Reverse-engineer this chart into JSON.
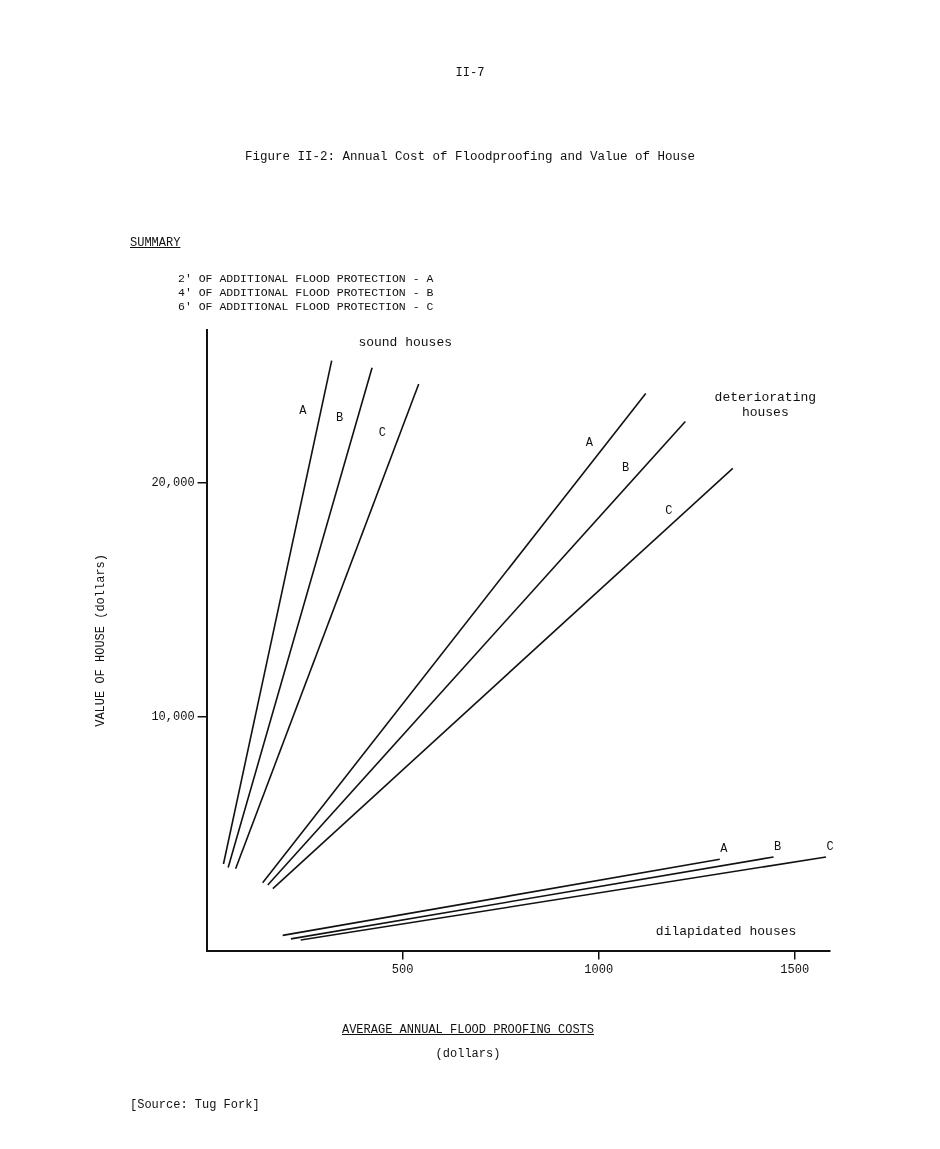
{
  "chart_data": {
    "type": "line",
    "title": "Figure II-2:  Annual Cost of Floodproofing and Value of House",
    "xlabel": "AVERAGE ANNUAL FLOOD PROOFING COSTS (dollars)",
    "ylabel": "VALUE OF HOUSE (dollars)",
    "xlim": [
      0,
      1590
    ],
    "xticks": [
      500,
      1000,
      1500
    ],
    "ylim": [
      0,
      26500
    ],
    "yticks": [
      {
        "value": 10000,
        "label": "10,000"
      },
      {
        "value": 20000,
        "label": "20,000"
      }
    ],
    "grid": false,
    "legend": false,
    "marker": "none",
    "line_style": "solid",
    "series": [
      {
        "name": "A",
        "color": "#111111",
        "x": [
          43,
          319
        ],
        "values": [
          3700,
          25200
        ]
      },
      {
        "name": "B",
        "color": "#111111",
        "x": [
          55,
          422
        ],
        "values": [
          3550,
          24900
        ]
      },
      {
        "name": "C",
        "color": "#111111",
        "x": [
          74,
          541
        ],
        "values": [
          3500,
          24200
        ]
      },
      {
        "name": "A",
        "color": "#111111",
        "x": [
          143,
          1120
        ],
        "values": [
          2900,
          23800
        ]
      },
      {
        "name": "B",
        "color": "#111111",
        "x": [
          156,
          1221
        ],
        "values": [
          2800,
          22600
        ]
      },
      {
        "name": "C",
        "color": "#111111",
        "x": [
          169,
          1342
        ],
        "values": [
          2650,
          20600
        ]
      },
      {
        "name": "A",
        "color": "#111111",
        "x": [
          194,
          1309
        ],
        "values": [
          650,
          3900
        ]
      },
      {
        "name": "B",
        "color": "#111111",
        "x": [
          215,
          1446
        ],
        "values": [
          500,
          4000
        ]
      },
      {
        "name": "C",
        "color": "#111111",
        "x": [
          240,
          1580
        ],
        "values": [
          450,
          4000
        ]
      }
    ],
    "annotations": [
      "II-7",
      "SUMMARY",
      "2' OF ADDITIONAL FLOOD PROTECTION - A",
      "4' OF ADDITIONAL FLOOD PROTECTION - B",
      "6' OF ADDITIONAL FLOOD PROTECTION - C",
      "sound houses",
      "deteriorating houses",
      "dilapidated houses",
      "[Source:  Tug Fork]"
    ]
  }
}
